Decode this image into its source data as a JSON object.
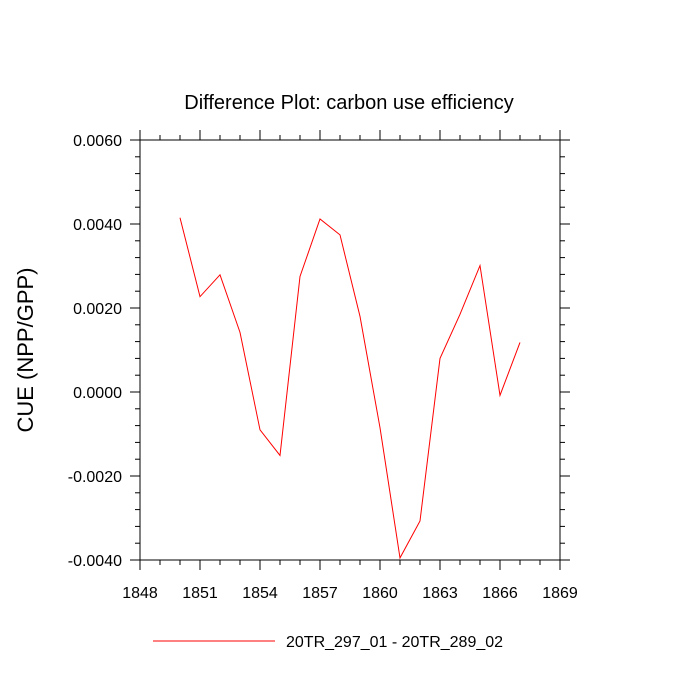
{
  "chart_data": {
    "type": "line",
    "title": "Difference Plot: carbon use efficiency",
    "xlabel": "",
    "ylabel": "CUE  (NPP/GPP)",
    "xlim": [
      1848,
      1869
    ],
    "ylim": [
      -0.004,
      0.006
    ],
    "xticks": [
      1848,
      1851,
      1854,
      1857,
      1860,
      1863,
      1866,
      1869
    ],
    "yticks": [
      -0.004,
      -0.002,
      0.0,
      0.002,
      0.004,
      0.006
    ],
    "ytick_labels": [
      "-0.0040",
      "-0.0020",
      "0.0000",
      "0.0020",
      "0.0040",
      "0.0060"
    ],
    "series": [
      {
        "name": "20TR_297_01 - 20TR_289_02",
        "color": "#ff0000",
        "x": [
          1850,
          1851,
          1852,
          1853,
          1854,
          1855,
          1856,
          1857,
          1858,
          1859,
          1860,
          1861,
          1862,
          1863,
          1864,
          1865,
          1866,
          1867
        ],
        "values": [
          0.00415,
          0.00227,
          0.00279,
          0.00142,
          -0.0009,
          -0.00151,
          0.00275,
          0.00412,
          0.00374,
          0.0018,
          -0.00085,
          -0.00395,
          -0.00307,
          0.0008,
          0.00185,
          0.00301,
          -8e-05,
          0.00118
        ]
      }
    ],
    "legend": {
      "position": "bottom"
    }
  }
}
